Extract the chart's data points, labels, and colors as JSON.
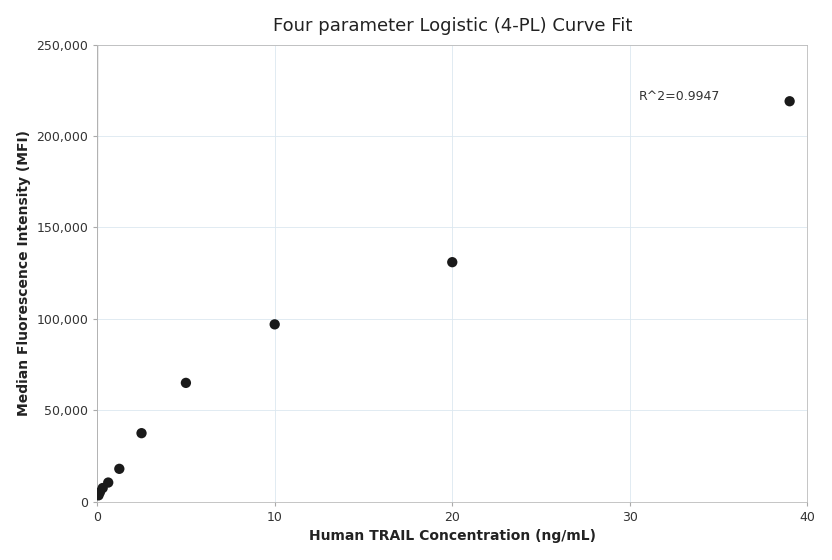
{
  "title": "Four parameter Logistic (4-PL) Curve Fit",
  "xlabel": "Human TRAIL Concentration (ng/mL)",
  "ylabel": "Median Fluorescence Intensity (MFI)",
  "scatter_x": [
    0.078,
    0.156,
    0.313,
    0.625,
    1.25,
    2.5,
    5.0,
    10.0,
    20.0,
    39.0
  ],
  "scatter_y": [
    3500,
    5200,
    7500,
    10500,
    18000,
    37500,
    65000,
    97000,
    131000,
    219000
  ],
  "r_squared": "R^2=0.9947",
  "xlim": [
    0,
    40
  ],
  "ylim": [
    0,
    250000
  ],
  "xticks": [
    0,
    10,
    20,
    30,
    40
  ],
  "yticks": [
    0,
    50000,
    100000,
    150000,
    200000,
    250000
  ],
  "scatter_color": "#1a1a1a",
  "line_color": "#888888",
  "grid_color": "#dce8f0",
  "background_color": "#ffffff",
  "title_fontsize": 13,
  "label_fontsize": 10,
  "tick_fontsize": 9,
  "annotation_fontsize": 9,
  "figsize": [
    8.32,
    5.6
  ],
  "dpi": 100
}
